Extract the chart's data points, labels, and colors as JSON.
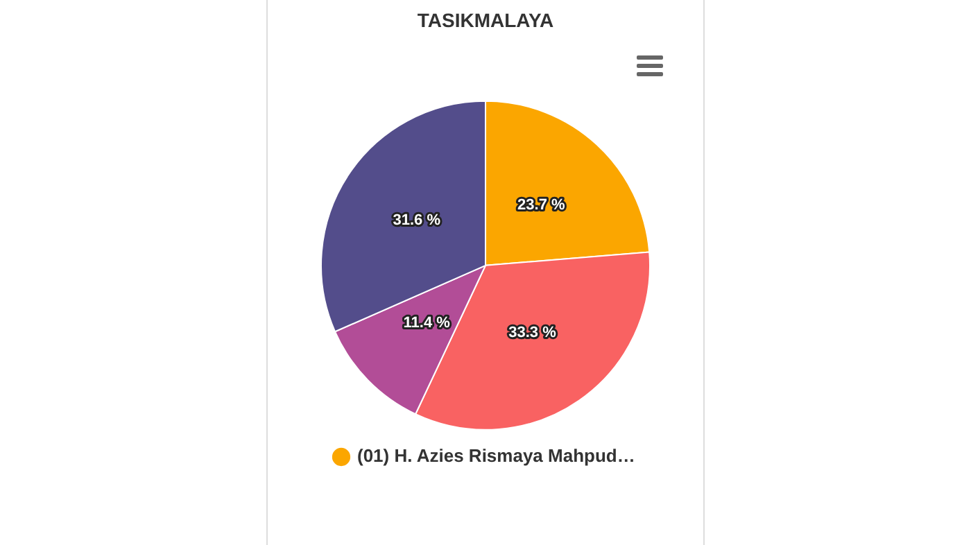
{
  "chart_data": {
    "type": "pie",
    "title": "TASIKMALAYA",
    "categories": [
      "(01) H. Azies Rismaya Mahpud…",
      null,
      null,
      null
    ],
    "values": [
      23.7,
      33.3,
      11.4,
      31.6
    ],
    "colors": [
      "#fba600",
      "#f96262",
      "#b24d97",
      "#534d8b"
    ],
    "value_labels": [
      "23.7 %",
      "33.3 %",
      "11.4 %",
      "31.6 %"
    ],
    "legend": "bottom"
  }
}
